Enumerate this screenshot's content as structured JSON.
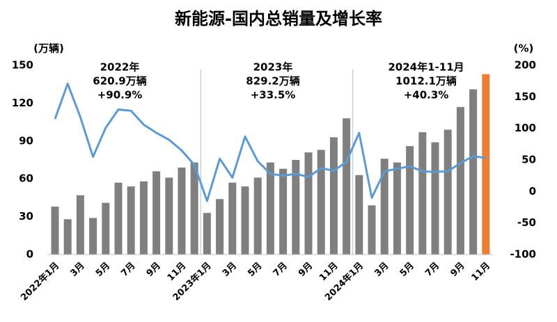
{
  "chart_data": {
    "type": "bar-line",
    "title": "新能源-国内总销量及增长率",
    "y_label": "(万辆)",
    "y2_label": "(%)",
    "categories": [
      "2022年1月",
      null,
      "3月",
      null,
      "5月",
      null,
      "7月",
      null,
      "9月",
      null,
      "11月",
      null,
      "2023年1月",
      null,
      "3月",
      null,
      "5月",
      null,
      "7月",
      null,
      "9月",
      null,
      "11月",
      null,
      "2024年1月",
      null,
      "3月",
      null,
      "5月",
      null,
      "7月",
      null,
      "9月",
      null,
      "11月"
    ],
    "series": [
      {
        "name": "销量",
        "type": "bar",
        "color": "#7f7f7f",
        "colors": [
          "#7f7f7f",
          "#7f7f7f",
          "#7f7f7f",
          "#7f7f7f",
          "#7f7f7f",
          "#7f7f7f",
          "#7f7f7f",
          "#7f7f7f",
          "#7f7f7f",
          "#7f7f7f",
          "#7f7f7f",
          "#7f7f7f",
          "#7f7f7f",
          "#7f7f7f",
          "#7f7f7f",
          "#7f7f7f",
          "#7f7f7f",
          "#7f7f7f",
          "#7f7f7f",
          "#7f7f7f",
          "#7f7f7f",
          "#7f7f7f",
          "#7f7f7f",
          "#7f7f7f",
          "#7f7f7f",
          "#7f7f7f",
          "#7f7f7f",
          "#7f7f7f",
          "#7f7f7f",
          "#7f7f7f",
          "#7f7f7f",
          "#7f7f7f",
          "#7f7f7f",
          "#7f7f7f",
          "#ed7d31"
        ],
        "values": [
          38,
          28,
          47,
          29,
          41,
          57,
          54,
          58,
          66,
          61,
          69,
          73,
          33,
          44,
          57,
          54,
          61,
          73,
          68,
          75,
          81,
          83,
          93,
          108,
          63,
          39,
          76,
          73,
          86,
          97,
          89,
          99,
          117,
          131,
          143
        ]
      },
      {
        "name": "增长率",
        "type": "line",
        "axis": "y2",
        "color": "#5b9bd5",
        "values": [
          115,
          171,
          118,
          55,
          101,
          130,
          128,
          106,
          93,
          82,
          65,
          42,
          -15,
          52,
          22,
          87,
          48,
          28,
          25,
          28,
          23,
          37,
          33,
          47,
          93,
          -10,
          32,
          36,
          40,
          32,
          31,
          32,
          45,
          56,
          53
        ]
      }
    ],
    "ylim": [
      0,
      150
    ],
    "yticks": [
      0,
      30,
      60,
      90,
      120,
      150
    ],
    "y2lim": [
      -100,
      200
    ],
    "y2ticks": [
      -100,
      -50,
      0,
      50,
      100,
      150,
      200
    ],
    "annotations": [
      {
        "lines": [
          "2022年",
          "620.9万辆",
          "+90.9%"
        ]
      },
      {
        "lines": [
          "2023年",
          "829.2万辆",
          "+33.5%"
        ]
      },
      {
        "lines": [
          "2024年1-11月",
          "1012.1万辆",
          "+40.3%"
        ]
      }
    ]
  }
}
